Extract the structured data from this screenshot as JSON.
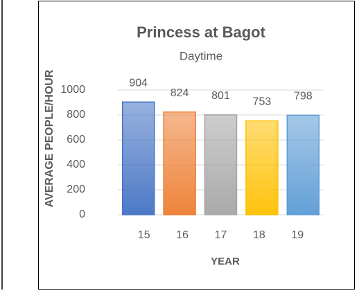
{
  "chart_data": {
    "type": "bar",
    "title": "Princess at Bagot",
    "subtitle": "Daytime",
    "x_label": "YEAR",
    "y_label": "AVERAGE PEOPLE/HOUR",
    "categories": [
      "15",
      "16",
      "17",
      "18",
      "19"
    ],
    "values": [
      904,
      824,
      801,
      753,
      798
    ],
    "colors": [
      "#4472c4",
      "#ed7d31",
      "#a5a5a5",
      "#ffc000",
      "#5b9bd5"
    ],
    "ylim": [
      0,
      1000
    ],
    "yticks": [
      0,
      200,
      400,
      600,
      800,
      1000
    ],
    "grid": true
  }
}
